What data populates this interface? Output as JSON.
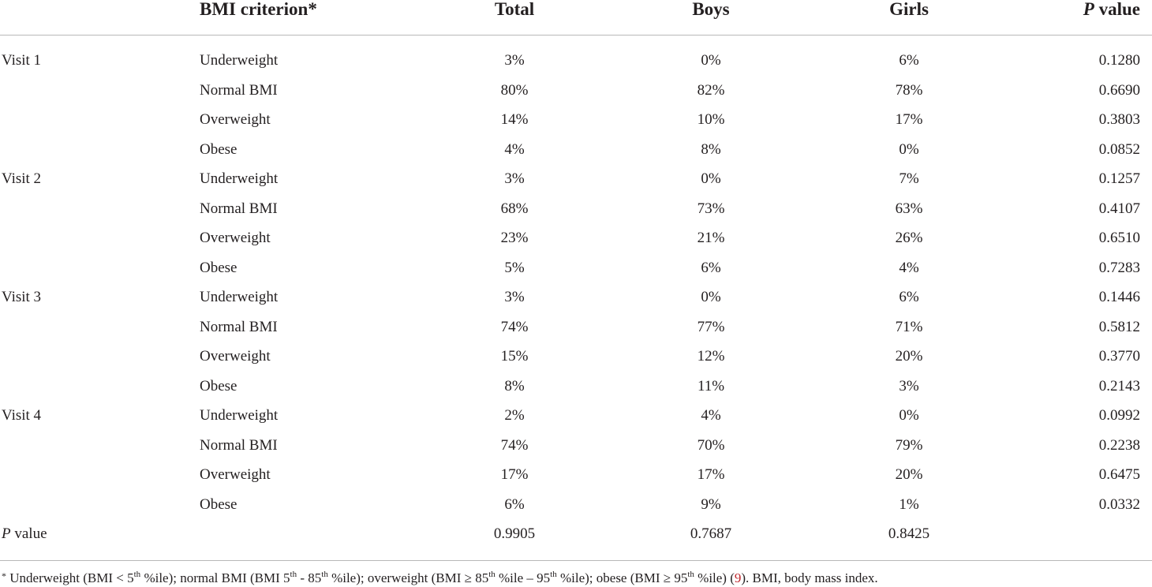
{
  "header": {
    "criterion": "BMI criterion",
    "criterion_mark": "*",
    "total": "Total",
    "boys": "Boys",
    "girls": "Girls",
    "p_value_p": "P",
    "p_value_rest": " value"
  },
  "rows": [
    {
      "visit": "Visit 1",
      "criterion": "Underweight",
      "total": "3%",
      "boys": "0%",
      "girls": "6%",
      "p": "0.1280"
    },
    {
      "visit": "",
      "criterion": "Normal BMI",
      "total": "80%",
      "boys": "82%",
      "girls": "78%",
      "p": "0.6690"
    },
    {
      "visit": "",
      "criterion": "Overweight",
      "total": "14%",
      "boys": "10%",
      "girls": "17%",
      "p": "0.3803"
    },
    {
      "visit": "",
      "criterion": "Obese",
      "total": "4%",
      "boys": "8%",
      "girls": "0%",
      "p": "0.0852"
    },
    {
      "visit": "Visit 2",
      "criterion": "Underweight",
      "total": "3%",
      "boys": "0%",
      "girls": "7%",
      "p": "0.1257"
    },
    {
      "visit": "",
      "criterion": "Normal BMI",
      "total": "68%",
      "boys": "73%",
      "girls": "63%",
      "p": "0.4107"
    },
    {
      "visit": "",
      "criterion": "Overweight",
      "total": "23%",
      "boys": "21%",
      "girls": "26%",
      "p": "0.6510"
    },
    {
      "visit": "",
      "criterion": "Obese",
      "total": "5%",
      "boys": "6%",
      "girls": "4%",
      "p": "0.7283"
    },
    {
      "visit": "Visit 3",
      "criterion": "Underweight",
      "total": "3%",
      "boys": "0%",
      "girls": "6%",
      "p": "0.1446"
    },
    {
      "visit": "",
      "criterion": "Normal BMI",
      "total": "74%",
      "boys": "77%",
      "girls": "71%",
      "p": "0.5812"
    },
    {
      "visit": "",
      "criterion": "Overweight",
      "total": "15%",
      "boys": "12%",
      "girls": "20%",
      "p": "0.3770"
    },
    {
      "visit": "",
      "criterion": "Obese",
      "total": "8%",
      "boys": "11%",
      "girls": "3%",
      "p": "0.2143"
    },
    {
      "visit": "Visit 4",
      "criterion": "Underweight",
      "total": "2%",
      "boys": "4%",
      "girls": "0%",
      "p": "0.0992"
    },
    {
      "visit": "",
      "criterion": "Normal BMI",
      "total": "74%",
      "boys": "70%",
      "girls": "79%",
      "p": "0.2238"
    },
    {
      "visit": "",
      "criterion": "Overweight",
      "total": "17%",
      "boys": "17%",
      "girls": "20%",
      "p": "0.6475"
    },
    {
      "visit": "",
      "criterion": "Obese",
      "total": "6%",
      "boys": "9%",
      "girls": "1%",
      "p": "0.0332"
    }
  ],
  "summary_row": {
    "label_p": "P",
    "label_rest": " value",
    "total": "0.9905",
    "boys": "0.7687",
    "girls": "0.8425"
  },
  "footnote": {
    "mark": "*",
    "t1": " Underweight (BMI < 5",
    "s1": "th",
    "t2": " %ile); normal BMI (BMI 5",
    "s2": "th",
    "t3": " - 85",
    "s3": "th",
    "t4": " %ile); overweight (BMI ≥ 85",
    "s4": "th",
    "t5": " %ile – 95",
    "s5": "th",
    "t6": " %ile); obese (BMI ≥ 95",
    "s6": "th",
    "t7": " %ile) (",
    "ref": "9",
    "t8": "). BMI, body mass index."
  },
  "colors": {
    "text": "#231f20",
    "rule": "#b8b8b8",
    "reference_link": "#c0272d"
  }
}
